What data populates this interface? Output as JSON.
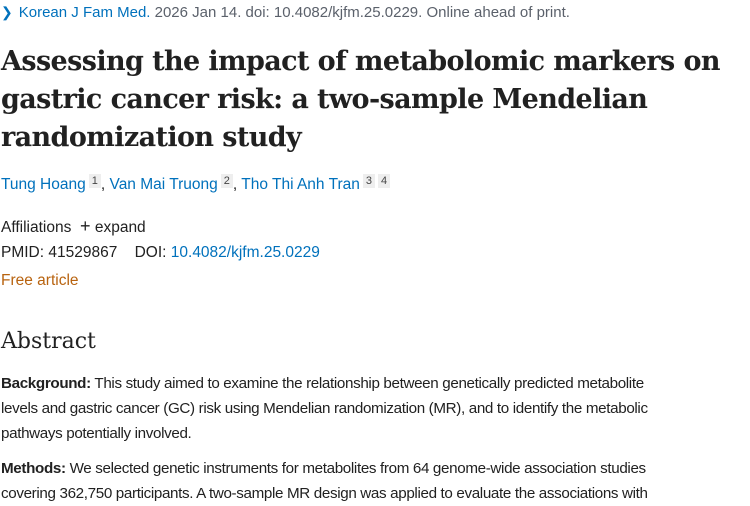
{
  "citation": {
    "journal": "Korean J Fam Med.",
    "rest": " 2026 Jan 14. doi: 10.4082/kjfm.25.0229. Online ahead of print."
  },
  "title_lines": [
    "Assessing the impact of metabolomic markers on",
    "gastric cancer risk: a two-sample Mendelian",
    "randomization study"
  ],
  "authors": [
    {
      "name": "Tung Hoang",
      "sups": [
        "1"
      ]
    },
    {
      "name": "Van Mai Truong",
      "sups": [
        "2"
      ]
    },
    {
      "name": "Tho Thi Anh Tran",
      "sups": [
        "3",
        "4"
      ]
    }
  ],
  "affiliations": {
    "label": "Affiliations",
    "expand": "expand"
  },
  "ids": {
    "pmid_label": "PMID:",
    "pmid": "41529867",
    "doi_label": "DOI:",
    "doi": "10.4082/kjfm.25.0229"
  },
  "free_article": "Free article",
  "abstract": {
    "heading": "Abstract",
    "background": {
      "label": "Background:",
      "lines": [
        " This study aimed to examine the relationship between genetically predicted metabolite",
        "levels and gastric cancer (GC) risk using Mendelian randomization (MR), and to identify the metabolic",
        "pathways potentially involved."
      ]
    },
    "methods": {
      "label": "Methods:",
      "lines": [
        " We selected genetic instruments for metabolites from 64 genome-wide association studies",
        "covering 362,750 participants. A two-sample MR design was applied to evaluate the associations with"
      ]
    }
  }
}
